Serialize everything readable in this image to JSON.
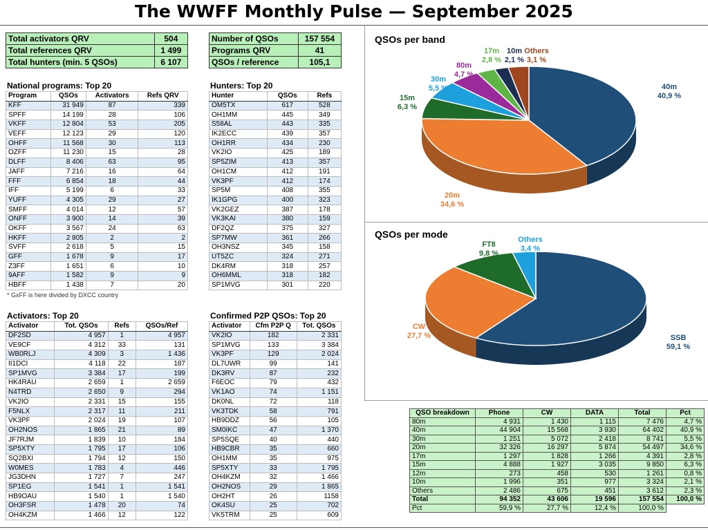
{
  "title": "The WWFF Monthly Pulse — September 2025",
  "summary_left": [
    {
      "label": "Total activators QRV",
      "value": "504"
    },
    {
      "label": "Total references QRV",
      "value": "1 499"
    },
    {
      "label": "Total hunters (min. 5 QSOs)",
      "value": "6 107"
    }
  ],
  "summary_right": [
    {
      "label": "Number of QSOs",
      "value": "157 554"
    },
    {
      "label": "Programs QRV",
      "value": "41"
    },
    {
      "label": "QSOs / reference",
      "value": "105,1"
    }
  ],
  "national": {
    "title": "National programs: Top 20",
    "headers": [
      "Program",
      "QSOs",
      "Activators",
      "Refs QRV"
    ],
    "rows": [
      [
        "KFF",
        "31 949",
        "87",
        "339"
      ],
      [
        "SPFF",
        "14 199",
        "28",
        "106"
      ],
      [
        "VKFF",
        "12 804",
        "53",
        "205"
      ],
      [
        "VEFF",
        "12 123",
        "29",
        "120"
      ],
      [
        "OHFF",
        "11 568",
        "30",
        "113"
      ],
      [
        "OZFF",
        "11 230",
        "15",
        "28"
      ],
      [
        "DLFF",
        "8 406",
        "63",
        "95"
      ],
      [
        "JAFF",
        "7 216",
        "16",
        "64"
      ],
      [
        "FFF",
        "6 854",
        "18",
        "44"
      ],
      [
        "IFF",
        "5 199",
        "6",
        "33"
      ],
      [
        "YUFF",
        "4 305",
        "29",
        "27"
      ],
      [
        "SMFF",
        "4 014",
        "12",
        "57"
      ],
      [
        "ONFF",
        "3 900",
        "14",
        "39"
      ],
      [
        "OKFF",
        "3 567",
        "24",
        "63"
      ],
      [
        "HKFF",
        "2 805",
        "2",
        "2"
      ],
      [
        "SVFF",
        "2 618",
        "5",
        "15"
      ],
      [
        "GFF",
        "1 678",
        "9",
        "17"
      ],
      [
        "Z3FF",
        "1 651",
        "6",
        "10"
      ],
      [
        "9AFF",
        "1 582",
        "9",
        "9"
      ],
      [
        "HBFF",
        "1 438",
        "7",
        "20"
      ]
    ],
    "note": "* GxFF is here divided by DXCC country"
  },
  "hunters": {
    "title": "Hunters: Top 20",
    "headers": [
      "Hunter",
      "QSOs",
      "Refs"
    ],
    "rows": [
      [
        "OM5TX",
        "617",
        "528"
      ],
      [
        "OH1MM",
        "445",
        "349"
      ],
      [
        "S58AL",
        "443",
        "335"
      ],
      [
        "IK2ECC",
        "439",
        "357"
      ],
      [
        "OH1RR",
        "434",
        "230"
      ],
      [
        "VK2IO",
        "425",
        "189"
      ],
      [
        "SP5ZIM",
        "413",
        "357"
      ],
      [
        "OH1CM",
        "412",
        "191"
      ],
      [
        "VK3PF",
        "412",
        "174"
      ],
      [
        "SP5M",
        "408",
        "355"
      ],
      [
        "IK1GPG",
        "400",
        "323"
      ],
      [
        "VK2GEZ",
        "387",
        "178"
      ],
      [
        "VK3KAI",
        "380",
        "159"
      ],
      [
        "DF2QZ",
        "375",
        "327"
      ],
      [
        "SP7MW",
        "361",
        "266"
      ],
      [
        "OH3NSZ",
        "345",
        "158"
      ],
      [
        "UT5ZC",
        "324",
        "271"
      ],
      [
        "DK4RM",
        "318",
        "257"
      ],
      [
        "OH6MML",
        "318",
        "182"
      ],
      [
        "SP1MVG",
        "301",
        "220"
      ]
    ]
  },
  "activators": {
    "title": "Activators: Top 20",
    "headers": [
      "Activator",
      "Tot. QSOs",
      "Refs",
      "QSOs/Ref"
    ],
    "rows": [
      [
        "DF2SD",
        "4 957",
        "1",
        "4 957"
      ],
      [
        "VE9CF",
        "4 312",
        "33",
        "131"
      ],
      [
        "WB0RLJ",
        "4 309",
        "3",
        "1 436"
      ],
      [
        "II1DCI",
        "4 118",
        "22",
        "187"
      ],
      [
        "SP1MVG",
        "3 384",
        "17",
        "199"
      ],
      [
        "HK4RAU",
        "2 659",
        "1",
        "2 659"
      ],
      [
        "N4TRD",
        "2 650",
        "9",
        "294"
      ],
      [
        "VK2IO",
        "2 331",
        "15",
        "155"
      ],
      [
        "F5NLX",
        "2 317",
        "11",
        "211"
      ],
      [
        "VK3PF",
        "2 024",
        "19",
        "107"
      ],
      [
        "OH2NOS",
        "1 865",
        "21",
        "89"
      ],
      [
        "JF7RJM",
        "1 839",
        "10",
        "184"
      ],
      [
        "SP5XTY",
        "1 795",
        "17",
        "106"
      ],
      [
        "SQ2BXI",
        "1 794",
        "12",
        "150"
      ],
      [
        "W0MES",
        "1 783",
        "4",
        "446"
      ],
      [
        "JG3DHN",
        "1 727",
        "7",
        "247"
      ],
      [
        "SP1EG",
        "1 541",
        "1",
        "1 541"
      ],
      [
        "HB9OAU",
        "1 540",
        "1",
        "1 540"
      ],
      [
        "OH3FSR",
        "1 478",
        "20",
        "74"
      ],
      [
        "OH4KZM",
        "1 466",
        "12",
        "122"
      ]
    ]
  },
  "p2p": {
    "title": "Confirmed P2P QSOs: Top 20",
    "headers": [
      "Activator",
      "Cfm P2P Q",
      "Tot. QSOs"
    ],
    "rows": [
      [
        "VK2IO",
        "182",
        "2 331"
      ],
      [
        "SP1MVG",
        "133",
        "3 384"
      ],
      [
        "VK3PF",
        "129",
        "2 024"
      ],
      [
        "DL7UWR",
        "99",
        "141"
      ],
      [
        "DK3RV",
        "87",
        "232"
      ],
      [
        "F6EOC",
        "79",
        "432"
      ],
      [
        "VK1AO",
        "74",
        "1 151"
      ],
      [
        "DK0NL",
        "72",
        "118"
      ],
      [
        "VK3TDK",
        "58",
        "791"
      ],
      [
        "HB9DDZ",
        "56",
        "105"
      ],
      [
        "SM0IKC",
        "47",
        "1 370"
      ],
      [
        "SP5SQE",
        "40",
        "440"
      ],
      [
        "HB9CBR",
        "35",
        "660"
      ],
      [
        "OH1MM",
        "35",
        "975"
      ],
      [
        "SP5XTY",
        "33",
        "1 795"
      ],
      [
        "OH4KZM",
        "32",
        "1 466"
      ],
      [
        "OH2NOS",
        "29",
        "1 865"
      ],
      [
        "OH2HT",
        "26",
        "1158"
      ],
      [
        "OK4SU",
        "25",
        "702"
      ],
      [
        "VK5TRM",
        "25",
        "609"
      ]
    ]
  },
  "breakdown": {
    "headers": [
      "QSO breakdown",
      "Phone",
      "CW",
      "DATA",
      "Total",
      "Pct"
    ],
    "rows": [
      [
        "80m",
        "4 931",
        "1 430",
        "1 115",
        "7 476",
        "4,7 %"
      ],
      [
        "40m",
        "44 904",
        "15 568",
        "3 930",
        "64 402",
        "40,9 %"
      ],
      [
        "30m",
        "1 251",
        "5 072",
        "2 418",
        "8 741",
        "5,5 %"
      ],
      [
        "20m",
        "32 326",
        "16 297",
        "5 874",
        "54 497",
        "34,6 %"
      ],
      [
        "17m",
        "1 297",
        "1 828",
        "1 266",
        "4 391",
        "2,8 %"
      ],
      [
        "15m",
        "4 888",
        "1 927",
        "3 035",
        "9 850",
        "6,3 %"
      ],
      [
        "12m",
        "273",
        "458",
        "530",
        "1 261",
        "0,8 %"
      ],
      [
        "10m",
        "1 996",
        "351",
        "977",
        "3 324",
        "2,1 %"
      ],
      [
        "Others",
        "2 486",
        "675",
        "451",
        "3 612",
        "2,3 %"
      ]
    ],
    "total": [
      "Total",
      "94 352",
      "43 606",
      "19 596",
      "157 554",
      "100,0 %"
    ],
    "pct": [
      "Pct",
      "59,9 %",
      "27,7 %",
      "12,4 %",
      "100,0 %"
    ]
  },
  "chart_data": [
    {
      "type": "pie",
      "title": "QSOs per band",
      "labels": [
        "40m",
        "20m",
        "15m",
        "30m",
        "80m",
        "17m",
        "10m",
        "Others"
      ],
      "values": [
        40.9,
        34.6,
        6.3,
        5.5,
        4.7,
        2.8,
        2.1,
        3.1
      ],
      "value_labels": [
        "40,9 %",
        "34,6 %",
        "6,3 %",
        "5,5 %",
        "4,7 %",
        "2,8 %",
        "2,1 %",
        "3,1 %"
      ],
      "colors": [
        "#1f4e79",
        "#ed7d31",
        "#1e6b2a",
        "#1ea0dc",
        "#9b2b9b",
        "#5fb446",
        "#1a2f52",
        "#a0461e"
      ]
    },
    {
      "type": "pie",
      "title": "QSOs per mode",
      "labels": [
        "SSB",
        "CW",
        "FT8",
        "Others"
      ],
      "values": [
        59.1,
        27.7,
        9.8,
        3.4
      ],
      "value_labels": [
        "59,1 %",
        "27,7 %",
        "9,8 %",
        "3,4 %"
      ],
      "colors": [
        "#1f4e79",
        "#ed7d31",
        "#1e6b2a",
        "#1ea0dc"
      ]
    }
  ]
}
